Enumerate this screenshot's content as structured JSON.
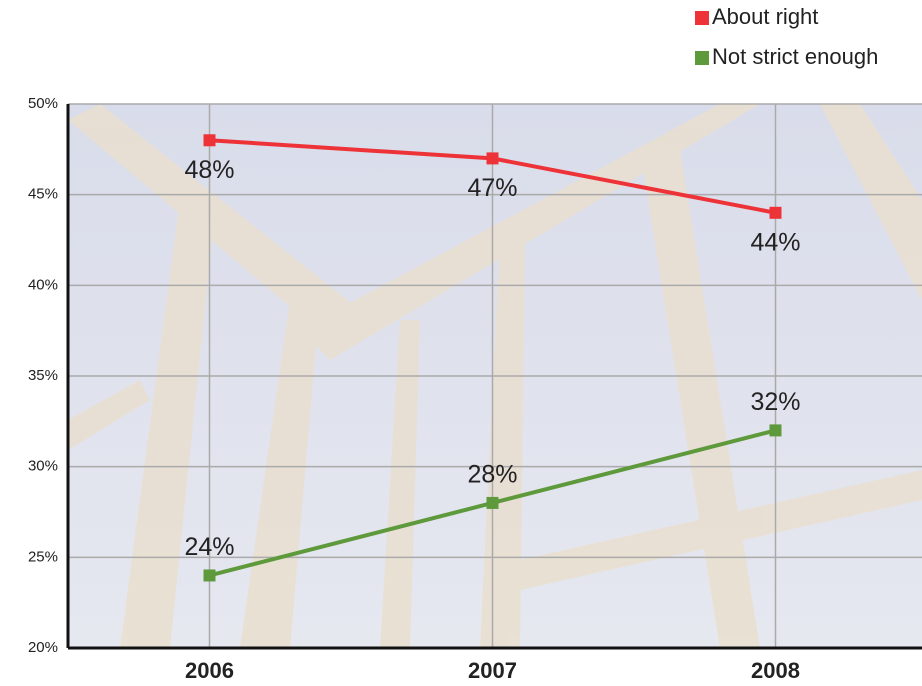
{
  "chart_data": {
    "type": "line",
    "categories": [
      "2006",
      "2007",
      "2008"
    ],
    "series": [
      {
        "name": "About right",
        "color": "#ee3338",
        "values": [
          48,
          47,
          44
        ],
        "value_labels": [
          "48%",
          "47%",
          "44%"
        ]
      },
      {
        "name": "Not strict enough",
        "color": "#5e9a3c",
        "values": [
          24,
          28,
          32
        ],
        "value_labels": [
          "24%",
          "28%",
          "32%"
        ]
      }
    ],
    "ylim": [
      20,
      50
    ],
    "yticks": [
      {
        "value": 20,
        "label": "20%"
      },
      {
        "value": 25,
        "label": "25%"
      },
      {
        "value": 30,
        "label": "30%"
      },
      {
        "value": 35,
        "label": "35%"
      },
      {
        "value": 40,
        "label": "40%"
      },
      {
        "value": 45,
        "label": "45%"
      },
      {
        "value": 50,
        "label": "50%"
      }
    ],
    "grid": true,
    "legend": "top-right"
  }
}
